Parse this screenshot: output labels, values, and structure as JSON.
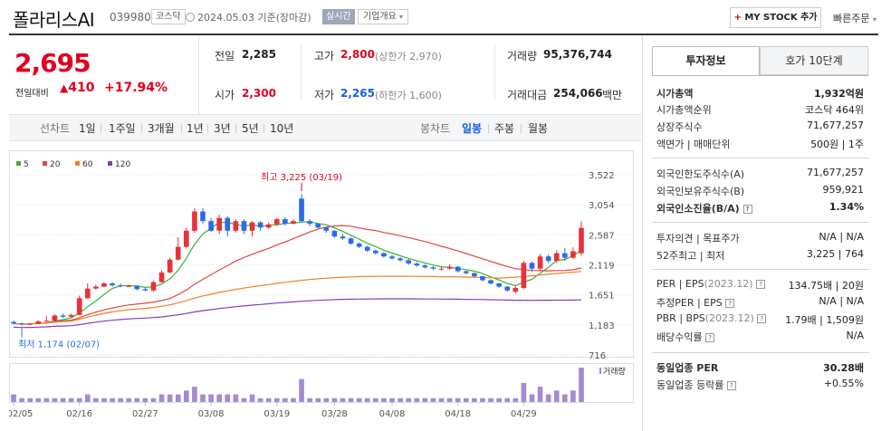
{
  "header": {
    "company": "폴라리스AI",
    "code": "039980",
    "market": "코스닥",
    "date": "2024.05.03 기준(장마감)",
    "realtime": "실시간",
    "company_info": "기업개요",
    "mystock_plus": "+",
    "mystock": "MY STOCK 추가",
    "quick_order": "빠른주문"
  },
  "quote": {
    "price": "2,695",
    "prev_label": "전일대비",
    "change": "410",
    "change_pct": "+17.94%",
    "prev_close_label": "전일",
    "prev_close": "2,285",
    "open_label": "시가",
    "open": "2,300",
    "high_label": "고가",
    "high": "2,800",
    "upper_limit": "(상한가 2,970)",
    "low_label": "저가",
    "low": "2,265",
    "lower_limit": "(하한가 1,600)",
    "volume_label": "거래량",
    "volume": "95,376,744",
    "amount_label": "거래대금",
    "amount": "254,066",
    "amount_unit": "백만"
  },
  "periods": {
    "label": "선차트",
    "items": [
      "1일",
      "1주일",
      "3개월",
      "1년",
      "3년",
      "5년",
      "10년"
    ],
    "candle_label": "봉차트",
    "candle_items": [
      "일봉",
      "주봉",
      "월봉"
    ],
    "active_candle": "일봉"
  },
  "chart_data": {
    "type": "candlestick",
    "legend": [
      {
        "name": "5",
        "color": "#35b335"
      },
      {
        "name": "20",
        "color": "#e84040"
      },
      {
        "name": "60",
        "color": "#f08020"
      },
      {
        "name": "120",
        "color": "#8040c0"
      }
    ],
    "y_ticks": [
      3522,
      3054,
      2587,
      2119,
      1651,
      1183,
      716
    ],
    "x_ticks": [
      "02/05",
      "02/16",
      "02/27",
      "03/08",
      "03/19",
      "03/28",
      "04/08",
      "04/18",
      "04/29"
    ],
    "annotations": {
      "high": "최고 3,225 (03/19)",
      "low": "최저 1,174 (02/07)"
    },
    "volume_label": "거래량",
    "candles": [
      {
        "o": 1230,
        "c": 1205,
        "h": 1250,
        "l": 1190
      },
      {
        "o": 1205,
        "c": 1190,
        "h": 1220,
        "l": 1174
      },
      {
        "o": 1190,
        "c": 1200,
        "h": 1215,
        "l": 1180
      },
      {
        "o": 1200,
        "c": 1240,
        "h": 1260,
        "l": 1195
      },
      {
        "o": 1240,
        "c": 1250,
        "h": 1330,
        "l": 1230
      },
      {
        "o": 1250,
        "c": 1330,
        "h": 1350,
        "l": 1240
      },
      {
        "o": 1330,
        "c": 1310,
        "h": 1360,
        "l": 1290
      },
      {
        "o": 1310,
        "c": 1340,
        "h": 1360,
        "l": 1300
      },
      {
        "o": 1340,
        "c": 1600,
        "h": 1640,
        "l": 1330
      },
      {
        "o": 1600,
        "c": 1750,
        "h": 1830,
        "l": 1590
      },
      {
        "o": 1750,
        "c": 1780,
        "h": 1810,
        "l": 1730
      },
      {
        "o": 1780,
        "c": 1830,
        "h": 1850,
        "l": 1770
      },
      {
        "o": 1830,
        "c": 1800,
        "h": 1850,
        "l": 1780
      },
      {
        "o": 1800,
        "c": 1790,
        "h": 1830,
        "l": 1770
      },
      {
        "o": 1790,
        "c": 1790,
        "h": 1810,
        "l": 1770
      },
      {
        "o": 1790,
        "c": 1740,
        "h": 1800,
        "l": 1720
      },
      {
        "o": 1740,
        "c": 1720,
        "h": 1760,
        "l": 1710
      },
      {
        "o": 1720,
        "c": 1850,
        "h": 1870,
        "l": 1700
      },
      {
        "o": 1850,
        "c": 2000,
        "h": 2030,
        "l": 1840
      },
      {
        "o": 2000,
        "c": 2200,
        "h": 2230,
        "l": 1990
      },
      {
        "o": 2200,
        "c": 2400,
        "h": 2550,
        "l": 2190
      },
      {
        "o": 2400,
        "c": 2650,
        "h": 2700,
        "l": 2380
      },
      {
        "o": 2650,
        "c": 2950,
        "h": 3000,
        "l": 2620
      },
      {
        "o": 2950,
        "c": 2800,
        "h": 3000,
        "l": 2760
      },
      {
        "o": 2800,
        "c": 2650,
        "h": 2850,
        "l": 2630
      },
      {
        "o": 2650,
        "c": 2850,
        "h": 2900,
        "l": 2600
      },
      {
        "o": 2850,
        "c": 2650,
        "h": 2880,
        "l": 2560
      },
      {
        "o": 2650,
        "c": 2800,
        "h": 2830,
        "l": 2620
      },
      {
        "o": 2800,
        "c": 2650,
        "h": 2830,
        "l": 2600
      },
      {
        "o": 2650,
        "c": 2780,
        "h": 2800,
        "l": 2560
      },
      {
        "o": 2780,
        "c": 2700,
        "h": 2800,
        "l": 2650
      },
      {
        "o": 2700,
        "c": 2750,
        "h": 2780,
        "l": 2680
      },
      {
        "o": 2750,
        "c": 2830,
        "h": 2850,
        "l": 2720
      },
      {
        "o": 2830,
        "c": 2760,
        "h": 2860,
        "l": 2730
      },
      {
        "o": 2760,
        "c": 2800,
        "h": 2830,
        "l": 2750
      },
      {
        "o": 3150,
        "c": 2800,
        "h": 3225,
        "l": 2780
      },
      {
        "o": 2800,
        "c": 2760,
        "h": 2830,
        "l": 2720
      },
      {
        "o": 2760,
        "c": 2700,
        "h": 2770,
        "l": 2680
      },
      {
        "o": 2700,
        "c": 2650,
        "h": 2710,
        "l": 2620
      },
      {
        "o": 2650,
        "c": 2560,
        "h": 2660,
        "l": 2540
      },
      {
        "o": 2560,
        "c": 2530,
        "h": 2600,
        "l": 2510
      },
      {
        "o": 2530,
        "c": 2450,
        "h": 2550,
        "l": 2430
      },
      {
        "o": 2450,
        "c": 2400,
        "h": 2470,
        "l": 2380
      },
      {
        "o": 2400,
        "c": 2340,
        "h": 2420,
        "l": 2320
      },
      {
        "o": 2340,
        "c": 2300,
        "h": 2360,
        "l": 2280
      },
      {
        "o": 2300,
        "c": 2250,
        "h": 2320,
        "l": 2230
      },
      {
        "o": 2250,
        "c": 2220,
        "h": 2270,
        "l": 2200
      },
      {
        "o": 2220,
        "c": 2190,
        "h": 2240,
        "l": 2170
      },
      {
        "o": 2190,
        "c": 2140,
        "h": 2210,
        "l": 2120
      },
      {
        "o": 2140,
        "c": 2110,
        "h": 2160,
        "l": 2090
      },
      {
        "o": 2110,
        "c": 2080,
        "h": 2130,
        "l": 2060
      },
      {
        "o": 2080,
        "c": 2060,
        "h": 2100,
        "l": 2040
      },
      {
        "o": 2060,
        "c": 2060,
        "h": 2090,
        "l": 2030
      },
      {
        "o": 2060,
        "c": 2090,
        "h": 2130,
        "l": 2040
      },
      {
        "o": 2090,
        "c": 2020,
        "h": 2100,
        "l": 2000
      },
      {
        "o": 2020,
        "c": 1990,
        "h": 2030,
        "l": 1970
      },
      {
        "o": 1990,
        "c": 1940,
        "h": 2000,
        "l": 1920
      },
      {
        "o": 1940,
        "c": 1880,
        "h": 1950,
        "l": 1860
      },
      {
        "o": 1880,
        "c": 1830,
        "h": 1890,
        "l": 1810
      },
      {
        "o": 1830,
        "c": 1780,
        "h": 1840,
        "l": 1760
      },
      {
        "o": 1780,
        "c": 1720,
        "h": 1790,
        "l": 1700
      },
      {
        "o": 1700,
        "c": 1760,
        "h": 1800,
        "l": 1670
      },
      {
        "o": 1760,
        "c": 2150,
        "h": 2180,
        "l": 1740
      },
      {
        "o": 2150,
        "c": 2060,
        "h": 2170,
        "l": 2010
      },
      {
        "o": 2060,
        "c": 2250,
        "h": 2290,
        "l": 2030
      },
      {
        "o": 2250,
        "c": 2180,
        "h": 2280,
        "l": 2150
      },
      {
        "o": 2180,
        "c": 2300,
        "h": 2350,
        "l": 2150
      },
      {
        "o": 2300,
        "c": 2230,
        "h": 2380,
        "l": 2180
      },
      {
        "o": 2230,
        "c": 2330,
        "h": 2390,
        "l": 2210
      },
      {
        "o": 2300,
        "c": 2695,
        "h": 2800,
        "l": 2265
      }
    ],
    "volumes": [
      2,
      1,
      1,
      1,
      1,
      1,
      1,
      1,
      1,
      2,
      1,
      1,
      1,
      1,
      1,
      1,
      1,
      1,
      2,
      2,
      2,
      3,
      4,
      2,
      2,
      2,
      2,
      2,
      1,
      2,
      1,
      1,
      1,
      1,
      1,
      6,
      1,
      1,
      1,
      1,
      1,
      1,
      1,
      1,
      1,
      1,
      1,
      1,
      1,
      1,
      1,
      1,
      1,
      1,
      1,
      1,
      1,
      1,
      1,
      1,
      1,
      1,
      5,
      2,
      4,
      2,
      3,
      2,
      3,
      9
    ]
  },
  "tabs": {
    "invest": "투자정보",
    "hoga": "호가 10단계"
  },
  "info": {
    "mcap_label": "시가총액",
    "mcap": "1,932억원",
    "mcap_rank_label": "시가총액순위",
    "mcap_rank": "코스닥 464위",
    "shares_label": "상장주식수",
    "shares": "71,677,257",
    "par_label": "액면가 | 매매단위",
    "par": "500원 | 1주",
    "foreign_limit_label": "외국인한도주식수(A)",
    "foreign_limit": "71,677,257",
    "foreign_hold_label": "외국인보유주식수(B)",
    "foreign_hold": "959,921",
    "foreign_ratio_label": "외국인소진율(B/A)",
    "foreign_ratio": "1.34%",
    "opinion_label": "투자의견 | 목표주가",
    "opinion": "N/A | N/A",
    "range52_label": "52주최고 | 최저",
    "range52": "3,225 | 764",
    "per_label": "PER | EPS",
    "per_period": "(2023.12)",
    "per": "134.75배 | 20원",
    "est_per_label": "추정PER | EPS",
    "est_per": "N/A | N/A",
    "pbr_label": "PBR | BPS",
    "pbr_period": "(2023.12)",
    "pbr": "1.79배 | 1,509원",
    "div_label": "배당수익률",
    "div": "N/A",
    "sector_per_label": "동일업종 PER",
    "sector_per": "30.28배",
    "sector_chg_label": "동일업종 등락률",
    "sector_chg": "+0.55%"
  }
}
